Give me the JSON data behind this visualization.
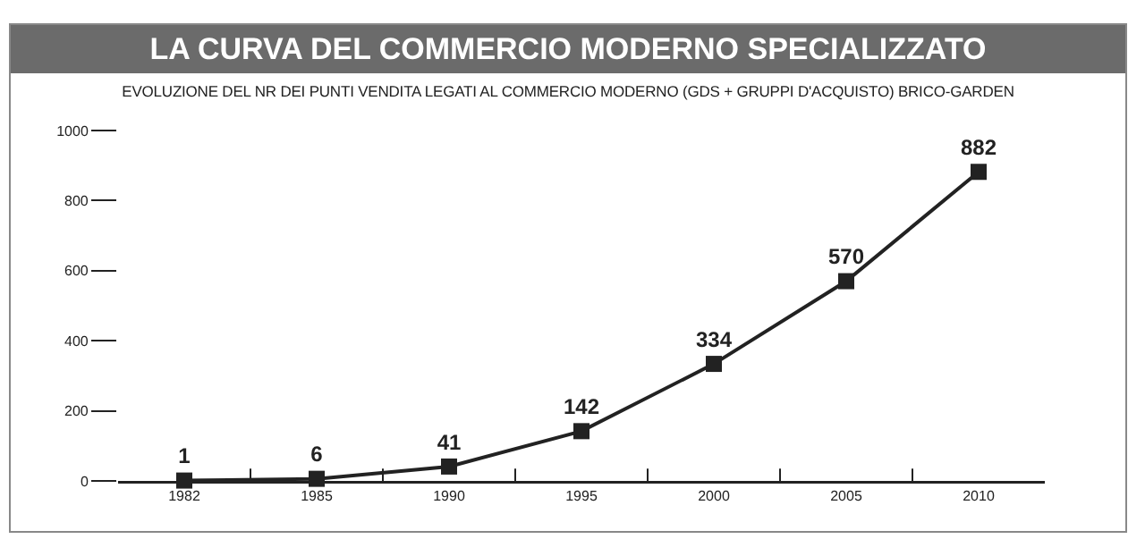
{
  "chart_data": {
    "type": "line",
    "title": "LA CURVA DEL COMMERCIO MODERNO SPECIALIZZATO",
    "subtitle": "EVOLUZIONE DEL NR DEI PUNTI VENDITA LEGATI AL COMMERCIO MODERNO (GDS + GRUPPI D'ACQUISTO) BRICO-GARDEN",
    "categories": [
      "1982",
      "1985",
      "1990",
      "1995",
      "2000",
      "2005",
      "2010"
    ],
    "series": [
      {
        "color": "#222222",
        "values": [
          1,
          6,
          41,
          142,
          334,
          570,
          882
        ]
      }
    ],
    "ylim": [
      0,
      1000
    ],
    "yticks": [
      0,
      200,
      400,
      600,
      800,
      1000
    ],
    "grid": false,
    "marker": "square",
    "line_style": "solid",
    "data_labels": true
  }
}
